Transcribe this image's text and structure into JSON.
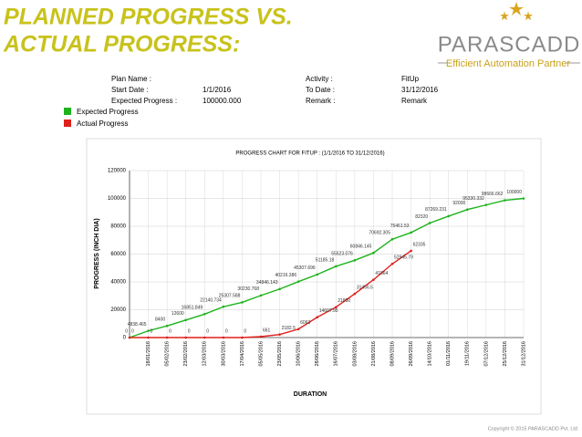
{
  "header": {
    "title_lines": [
      "PLANNED PROGRESS VS.",
      "ACTUAL PROGRESS:"
    ],
    "logo": "PARASCADD",
    "tagline": "Efficient Automation Partner"
  },
  "info": [
    [
      "Plan Name :",
      "",
      "Activity :",
      "FitUp"
    ],
    [
      "Start Date :",
      "1/1/2016",
      "To Date :",
      "31/12/2016"
    ],
    [
      "Expected Progress :",
      "100000.000",
      "Remark :",
      "Remark"
    ]
  ],
  "chart_data": {
    "type": "line",
    "title": "PROGRESS CHART FOR FITUP : (1/1/2016 TO 31/12/2016)",
    "x_label": "DURATION",
    "y_label": "PROGRESS (INCH DIA)",
    "categories": [
      null,
      "18/01/2016",
      "05/02/2016",
      "23/02/2016",
      "12/03/2016",
      "30/03/2016",
      "17/04/2016",
      "05/05/2016",
      "23/05/2016",
      "10/06/2016",
      "28/06/2016",
      "16/07/2016",
      "03/08/2016",
      "21/08/2016",
      "08/09/2016",
      "26/09/2016",
      "14/10/2016",
      "01/11/2016",
      "19/11/2016",
      "07/12/2016",
      "25/12/2016",
      "31/12/2016"
    ],
    "series": [
      {
        "name": "Expected Progress",
        "color": "#1db31d",
        "values": [
          0,
          4838.465,
          8400,
          12600,
          16851.849,
          22140.734,
          25307.588,
          30230.768,
          34846.143,
          40216.386,
          45307.696,
          51185.18,
          55523.076,
          60846.145,
          70692.305,
          75461.53,
          82320,
          87269.231,
          92000,
          95330.332,
          98666.662,
          100000
        ]
      },
      {
        "name": "Actual Progress",
        "color": "#e0201c",
        "values": [
          0,
          0,
          0,
          0,
          0,
          0,
          0,
          661,
          2182.5,
          6063,
          14607.95,
          21830,
          31456.5,
          41564,
          52945.79,
          62335,
          null,
          null,
          null,
          null,
          null,
          null
        ]
      }
    ],
    "ylim": [
      0,
      120000
    ],
    "yticks": [
      0,
      20000,
      40000,
      60000,
      80000,
      100000,
      120000
    ],
    "grid": true
  },
  "footer": "Copyright © 2015 PARASCADD Pvt. Ltd"
}
